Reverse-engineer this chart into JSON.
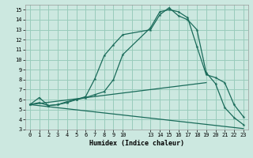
{
  "xlabel": "Humidex (Indice chaleur)",
  "bg_color": "#cce8e0",
  "grid_color": "#99ccbb",
  "line_color": "#1a6b5a",
  "xlim": [
    -0.5,
    23.5
  ],
  "ylim": [
    3,
    15.5
  ],
  "xtick_positions": [
    0,
    1,
    2,
    3,
    4,
    5,
    6,
    7,
    8,
    9,
    10,
    13,
    14,
    15,
    16,
    17,
    18,
    19,
    20,
    21,
    22,
    23
  ],
  "xtick_labels": [
    "0",
    "1",
    "2",
    "3",
    "4",
    "5",
    "6",
    "7",
    "8",
    "9",
    "10",
    "13",
    "14",
    "15",
    "16",
    "17",
    "18",
    "19",
    "20",
    "21",
    "22",
    "23"
  ],
  "ytick_positions": [
    3,
    4,
    5,
    6,
    7,
    8,
    9,
    10,
    11,
    12,
    13,
    14,
    15
  ],
  "ytick_labels": [
    "3",
    "4",
    "5",
    "6",
    "7",
    "8",
    "9",
    "10",
    "11",
    "12",
    "13",
    "14",
    "15"
  ],
  "grid_xticks": [
    0,
    1,
    2,
    3,
    4,
    5,
    6,
    7,
    8,
    9,
    10,
    11,
    12,
    13,
    14,
    15,
    16,
    17,
    18,
    19,
    20,
    21,
    22,
    23
  ],
  "line1_x": [
    0,
    1,
    2,
    3,
    4,
    5,
    6,
    7,
    8,
    9,
    10,
    13,
    14,
    15,
    16,
    17,
    18,
    19,
    20,
    21,
    22,
    23
  ],
  "line1_y": [
    5.5,
    6.2,
    5.4,
    5.5,
    5.7,
    6.0,
    6.3,
    8.1,
    10.4,
    11.5,
    12.5,
    13.0,
    14.5,
    15.2,
    14.4,
    14.0,
    13.0,
    8.7,
    7.6,
    5.2,
    4.2,
    3.5
  ],
  "line2_x": [
    0,
    1,
    2,
    3,
    4,
    5,
    6,
    7,
    8,
    9,
    10,
    13,
    14,
    15,
    16,
    17,
    18,
    19,
    20,
    21,
    22,
    23
  ],
  "line2_y": [
    5.5,
    5.7,
    5.4,
    5.5,
    5.8,
    6.0,
    6.2,
    6.5,
    6.8,
    8.0,
    10.5,
    13.2,
    14.8,
    15.0,
    14.8,
    14.2,
    11.3,
    8.5,
    8.2,
    7.7,
    5.5,
    4.3
  ],
  "line3_x": [
    0,
    19
  ],
  "line3_y": [
    5.5,
    7.7
  ],
  "line4_x": [
    0,
    23
  ],
  "line4_y": [
    5.5,
    3.1
  ]
}
